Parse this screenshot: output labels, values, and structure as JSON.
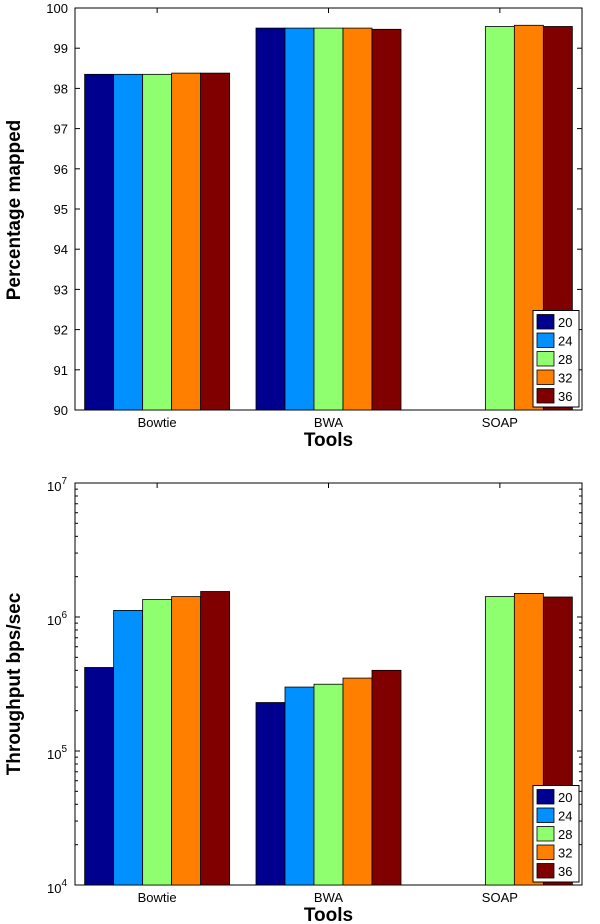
{
  "chart_data": [
    {
      "type": "bar",
      "scale": "linear",
      "title": "",
      "xlabel": "Tools",
      "ylabel": "Percentage mapped",
      "categories": [
        "Bowtie",
        "BWA",
        "SOAP"
      ],
      "ylim": [
        90,
        100
      ],
      "yticks": [
        90,
        91,
        92,
        93,
        94,
        95,
        96,
        97,
        98,
        99,
        100
      ],
      "ytick_labels": [
        "90",
        "91",
        "92",
        "93",
        "94",
        "95",
        "96",
        "97",
        "98",
        "99",
        "100"
      ],
      "legend_position": "bottom-right",
      "series": [
        {
          "name": "20",
          "color": "#00008f",
          "values": [
            98.35,
            99.5,
            null
          ]
        },
        {
          "name": "24",
          "color": "#0090ff",
          "values": [
            98.35,
            99.5,
            null
          ]
        },
        {
          "name": "28",
          "color": "#8fff70",
          "values": [
            98.35,
            99.5,
            99.54
          ]
        },
        {
          "name": "32",
          "color": "#ff7f00",
          "values": [
            98.38,
            99.5,
            99.57
          ]
        },
        {
          "name": "36",
          "color": "#800000",
          "values": [
            98.38,
            99.47,
            99.54
          ]
        }
      ]
    },
    {
      "type": "bar",
      "scale": "log",
      "title": "",
      "xlabel": "Tools",
      "ylabel": "Throughput bps/sec",
      "categories": [
        "Bowtie",
        "BWA",
        "SOAP"
      ],
      "ylim": [
        10000,
        10000000
      ],
      "yticks": [
        10000,
        100000,
        1000000,
        10000000
      ],
      "ytick_labels": [
        {
          "base": "10",
          "exp": "4"
        },
        {
          "base": "10",
          "exp": "5"
        },
        {
          "base": "10",
          "exp": "6"
        },
        {
          "base": "10",
          "exp": "7"
        }
      ],
      "legend_position": "bottom-right",
      "series": [
        {
          "name": "20",
          "color": "#00008f",
          "values": [
            420000,
            230000,
            null
          ]
        },
        {
          "name": "24",
          "color": "#0090ff",
          "values": [
            1120000,
            300000,
            null
          ]
        },
        {
          "name": "28",
          "color": "#8fff70",
          "values": [
            1350000,
            315000,
            1420000
          ]
        },
        {
          "name": "32",
          "color": "#ff7f00",
          "values": [
            1420000,
            350000,
            1500000
          ]
        },
        {
          "name": "36",
          "color": "#800000",
          "values": [
            1550000,
            400000,
            1410000
          ]
        }
      ]
    }
  ]
}
